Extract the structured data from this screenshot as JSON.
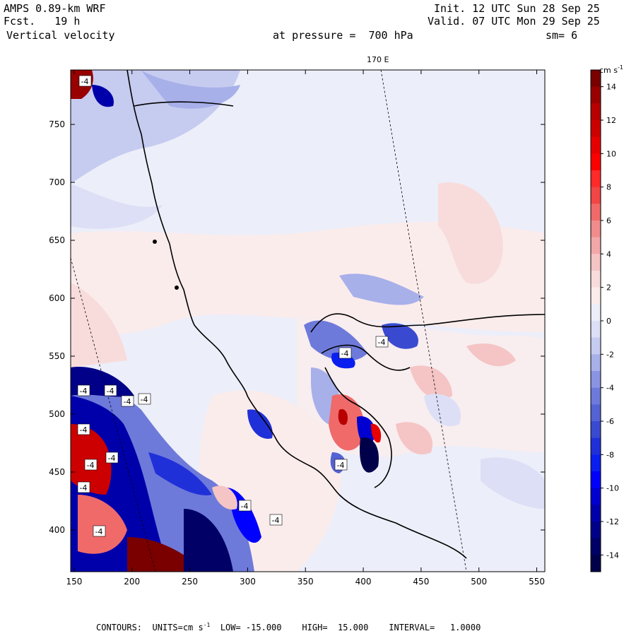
{
  "header": {
    "model": "AMPS 0.89-km WRF",
    "fcst": "Fcst.   19 h",
    "field": "Vertical velocity",
    "pressure": "at pressure =  700 hPa",
    "init": "Init. 12 UTC Sun 28 Sep 25",
    "valid": "Valid. 07 UTC Mon 29 Sep 25",
    "smooth": "sm= 6",
    "meridian_label": "170 E"
  },
  "axes": {
    "x_ticks": [
      "150",
      "200",
      "250",
      "300",
      "350",
      "400",
      "450",
      "500",
      "550"
    ],
    "y_ticks": [
      "750",
      "700",
      "650",
      "600",
      "550",
      "500",
      "450",
      "400"
    ]
  },
  "colorbar": {
    "units": "cm s",
    "units_sup": "-1",
    "labels": [
      "14",
      "12",
      "10",
      "8",
      "6",
      "4",
      "2",
      "0",
      "-2",
      "-4",
      "-6",
      "-8",
      "-10",
      "-12",
      "-14"
    ],
    "colors_top_to_bottom": [
      "#7a0000",
      "#990000",
      "#b80000",
      "#cc0000",
      "#e60000",
      "#ff0000",
      "#ff2a2a",
      "#f24545",
      "#f06a6a",
      "#f08c8c",
      "#f2a8a8",
      "#f5c4c4",
      "#f8dcdc",
      "#fbecec",
      "#eceef9",
      "#dcdff5",
      "#c6cbf0",
      "#a8b0ea",
      "#8a94e2",
      "#6e7ada",
      "#5462d4",
      "#3a4ad0",
      "#2030d8",
      "#0a1ef0",
      "#0000ff",
      "#0000d0",
      "#0000aa",
      "#000088",
      "#000066",
      "#00004a"
    ]
  },
  "contour_labels": [
    "-4",
    "-4",
    "-4",
    "-4",
    "-4",
    "-4",
    "-4",
    "-4",
    "-4",
    "-4",
    "-4",
    "-4",
    "-4",
    "-4",
    "-4"
  ],
  "footer": {
    "contours": "CONTOURS:  UNITS=cm s",
    "units_sup": "-1",
    "low": "LOW= -15.000",
    "high": "HIGH=  15.000",
    "interval": "INTERVAL=   1.0000"
  }
}
